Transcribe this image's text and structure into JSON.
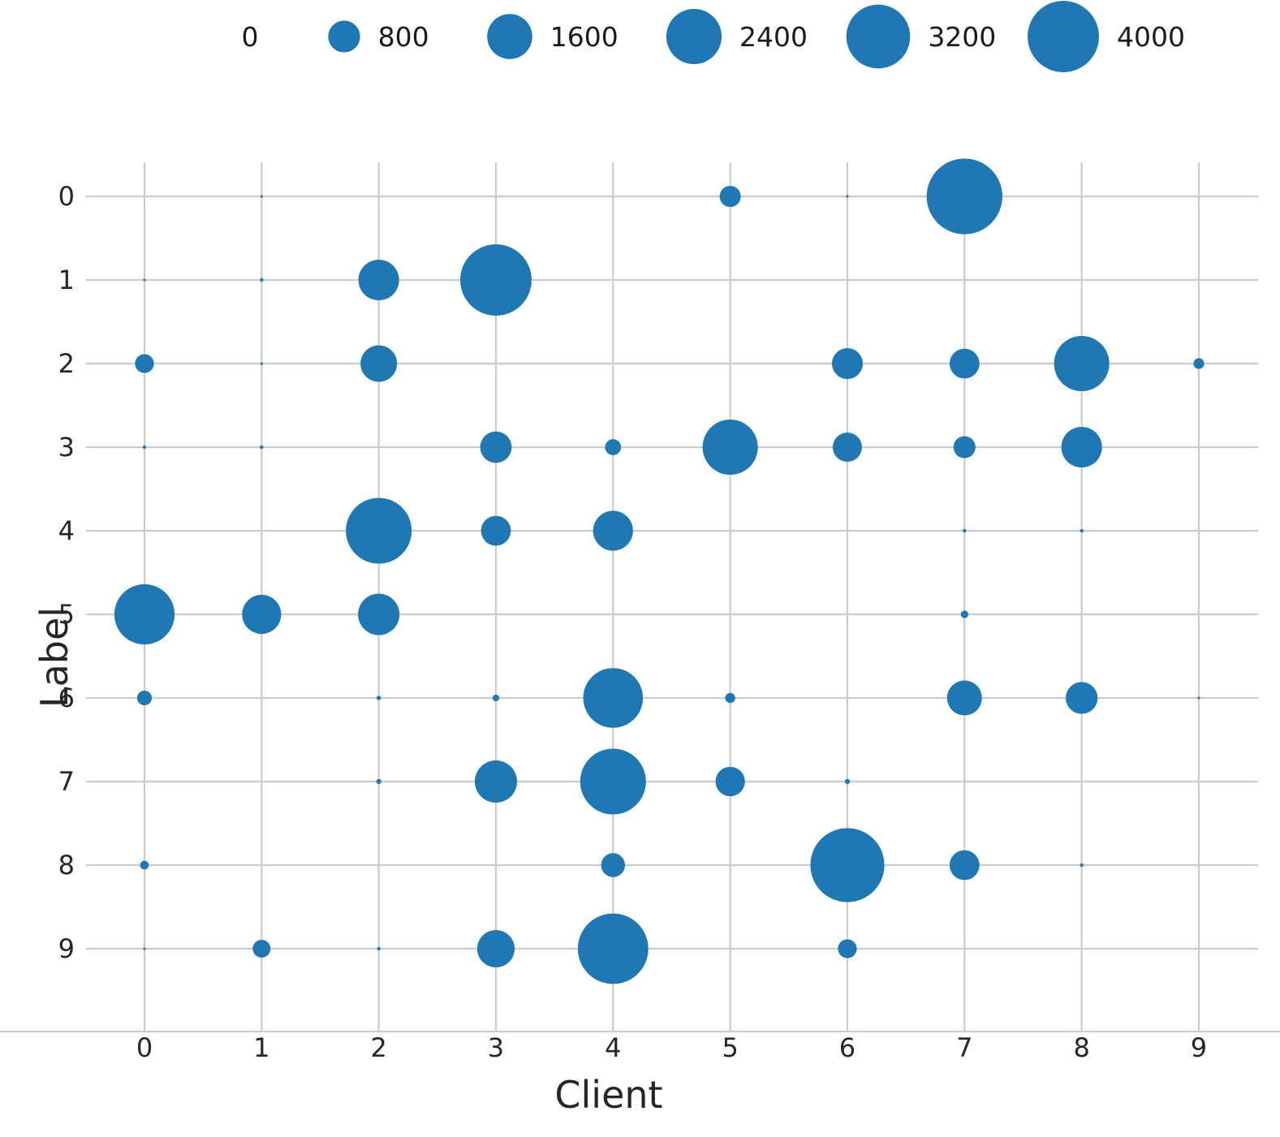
{
  "chart_data": {
    "type": "scatter",
    "title": "",
    "xlabel": "Client",
    "ylabel": "Label",
    "x_ticks": [
      "0",
      "1",
      "2",
      "3",
      "4",
      "5",
      "6",
      "7",
      "8",
      "9"
    ],
    "y_ticks": [
      "0",
      "1",
      "2",
      "3",
      "4",
      "5",
      "6",
      "7",
      "8",
      "9"
    ],
    "x_range": [
      0,
      9
    ],
    "y_range": [
      0,
      9
    ],
    "grid": true,
    "legend_position": "top",
    "bubble_color": "#1f77b4",
    "grid_color": "#cccccc",
    "text_color": "#262626",
    "size_encoding": "bubble area proportional to value",
    "legend": {
      "labels": [
        "0",
        "800",
        "1600",
        "2400",
        "3200",
        "4000"
      ],
      "sizes": [
        0,
        800,
        1600,
        2400,
        3200,
        4000
      ]
    },
    "points": [
      {
        "client": 1,
        "label": 0,
        "value": 5
      },
      {
        "client": 5,
        "label": 0,
        "value": 350
      },
      {
        "client": 6,
        "label": 0,
        "value": 5
      },
      {
        "client": 7,
        "label": 0,
        "value": 4500
      },
      {
        "client": 0,
        "label": 1,
        "value": 5
      },
      {
        "client": 1,
        "label": 1,
        "value": 10
      },
      {
        "client": 2,
        "label": 1,
        "value": 1300
      },
      {
        "client": 3,
        "label": 1,
        "value": 4000
      },
      {
        "client": 0,
        "label": 2,
        "value": 280
      },
      {
        "client": 1,
        "label": 2,
        "value": 5
      },
      {
        "client": 2,
        "label": 2,
        "value": 1050
      },
      {
        "client": 6,
        "label": 2,
        "value": 750
      },
      {
        "client": 7,
        "label": 2,
        "value": 700
      },
      {
        "client": 8,
        "label": 2,
        "value": 2400
      },
      {
        "client": 9,
        "label": 2,
        "value": 90
      },
      {
        "client": 0,
        "label": 3,
        "value": 10
      },
      {
        "client": 1,
        "label": 3,
        "value": 10
      },
      {
        "client": 3,
        "label": 3,
        "value": 780
      },
      {
        "client": 4,
        "label": 3,
        "value": 200
      },
      {
        "client": 5,
        "label": 3,
        "value": 2400
      },
      {
        "client": 6,
        "label": 3,
        "value": 670
      },
      {
        "client": 7,
        "label": 3,
        "value": 380
      },
      {
        "client": 8,
        "label": 3,
        "value": 1300
      },
      {
        "client": 2,
        "label": 4,
        "value": 3400
      },
      {
        "client": 3,
        "label": 4,
        "value": 700
      },
      {
        "client": 4,
        "label": 4,
        "value": 1250
      },
      {
        "client": 7,
        "label": 4,
        "value": 10
      },
      {
        "client": 8,
        "label": 4,
        "value": 10
      },
      {
        "client": 0,
        "label": 5,
        "value": 2850
      },
      {
        "client": 1,
        "label": 5,
        "value": 1200
      },
      {
        "client": 2,
        "label": 5,
        "value": 1350
      },
      {
        "client": 7,
        "label": 5,
        "value": 45
      },
      {
        "client": 0,
        "label": 6,
        "value": 170
      },
      {
        "client": 2,
        "label": 6,
        "value": 15
      },
      {
        "client": 3,
        "label": 6,
        "value": 35
      },
      {
        "client": 4,
        "label": 6,
        "value": 2800
      },
      {
        "client": 5,
        "label": 6,
        "value": 80
      },
      {
        "client": 7,
        "label": 6,
        "value": 960
      },
      {
        "client": 8,
        "label": 6,
        "value": 800
      },
      {
        "client": 9,
        "label": 6,
        "value": 5
      },
      {
        "client": 2,
        "label": 7,
        "value": 20
      },
      {
        "client": 3,
        "label": 7,
        "value": 1400
      },
      {
        "client": 4,
        "label": 7,
        "value": 3400
      },
      {
        "client": 5,
        "label": 7,
        "value": 680
      },
      {
        "client": 6,
        "label": 7,
        "value": 20
      },
      {
        "client": 0,
        "label": 8,
        "value": 60
      },
      {
        "client": 4,
        "label": 8,
        "value": 450
      },
      {
        "client": 6,
        "label": 8,
        "value": 4300
      },
      {
        "client": 7,
        "label": 8,
        "value": 700
      },
      {
        "client": 8,
        "label": 8,
        "value": 10
      },
      {
        "client": 0,
        "label": 9,
        "value": 5
      },
      {
        "client": 1,
        "label": 9,
        "value": 250
      },
      {
        "client": 2,
        "label": 9,
        "value": 10
      },
      {
        "client": 3,
        "label": 9,
        "value": 1100
      },
      {
        "client": 4,
        "label": 9,
        "value": 3900
      },
      {
        "client": 6,
        "label": 9,
        "value": 280
      }
    ]
  }
}
